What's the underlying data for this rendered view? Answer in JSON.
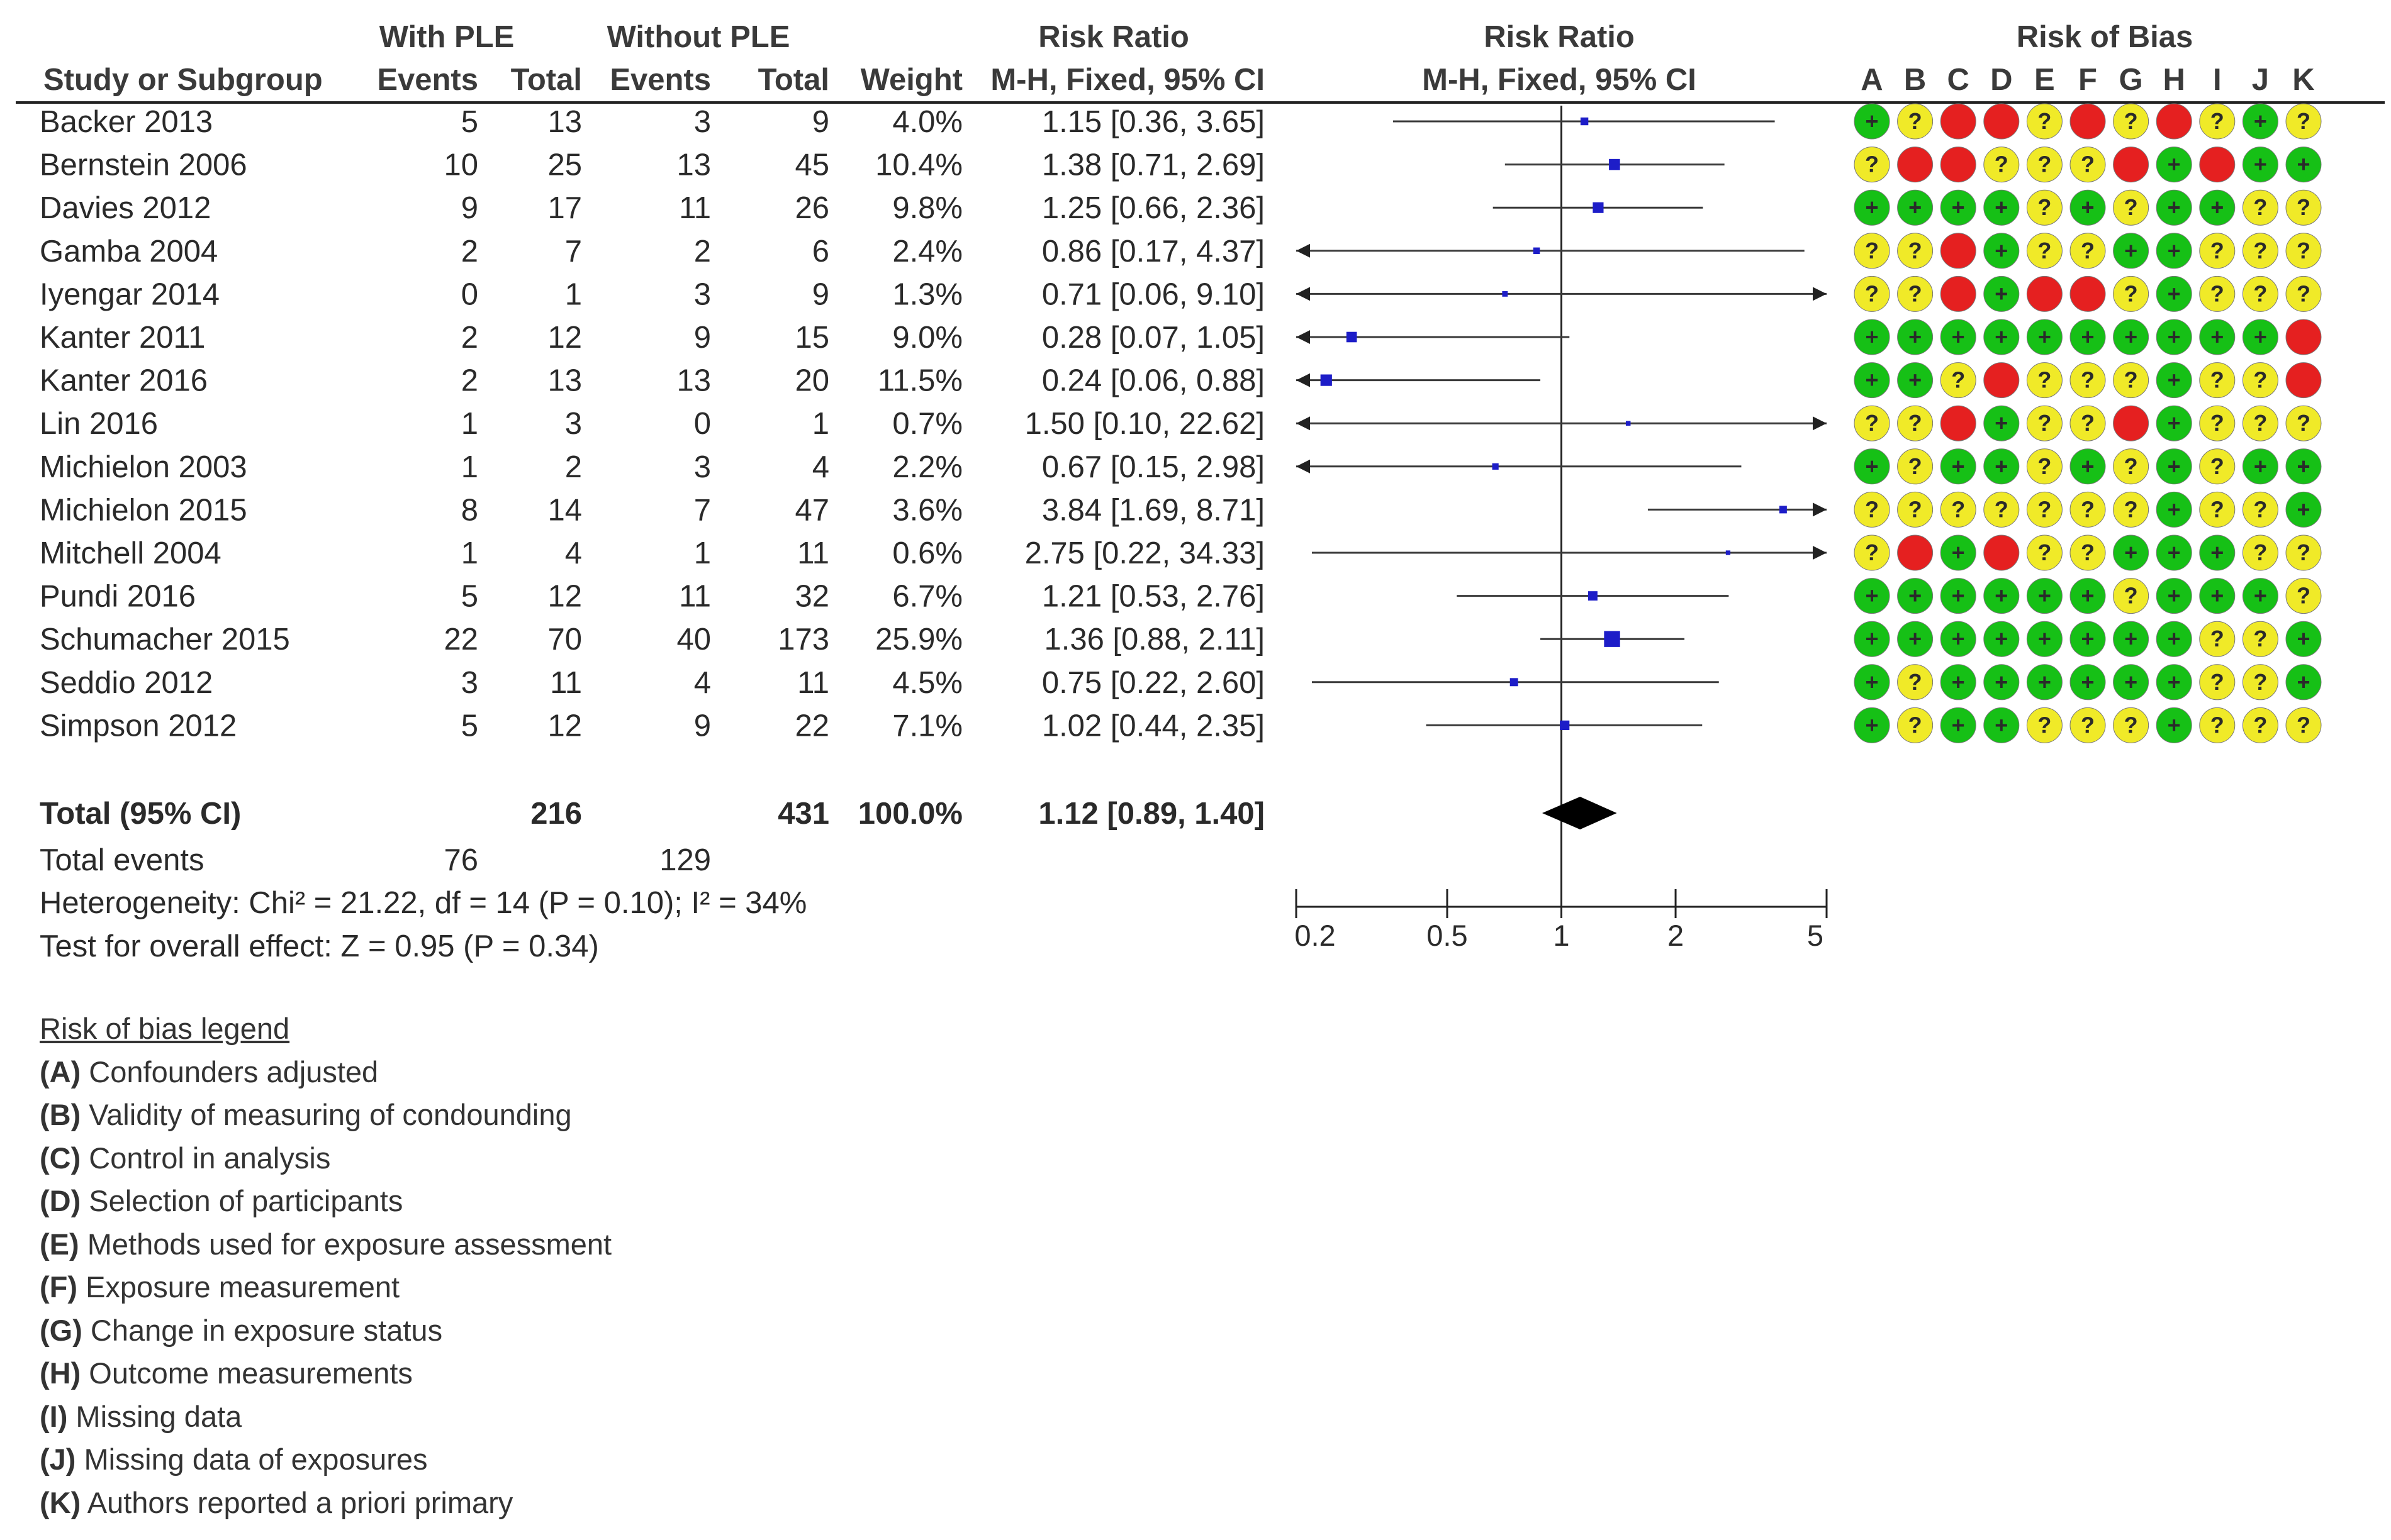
{
  "chart_data": {
    "type": "forest",
    "headers": {
      "study": "Study or Subgroup",
      "with_group": "With PLE",
      "without_group": "Without PLE",
      "events": "Events",
      "total": "Total",
      "weight": "Weight",
      "rr_title": "Risk Ratio",
      "rr_method": "M-H, Fixed, 95% CI",
      "plot_title": "Risk Ratio",
      "plot_method": "M-H, Fixed, 95% CI",
      "rob_title": "Risk of Bias",
      "rob_letters": [
        "A",
        "B",
        "C",
        "D",
        "E",
        "F",
        "G",
        "H",
        "I",
        "J",
        "K"
      ]
    },
    "studies": [
      {
        "name": "Backer 2013",
        "e1": "5",
        "n1": "13",
        "e2": "3",
        "n2": "9",
        "weight": "4.0%",
        "ci_text": "1.15 [0.36, 3.65]",
        "rr": 1.15,
        "lo": 0.36,
        "hi": 3.65,
        "w": 4.0,
        "rob": [
          "+",
          "?",
          "-",
          "-",
          "?",
          "-",
          "?",
          "-",
          "?",
          "+",
          "?"
        ]
      },
      {
        "name": "Bernstein 2006",
        "e1": "10",
        "n1": "25",
        "e2": "13",
        "n2": "45",
        "weight": "10.4%",
        "ci_text": "1.38 [0.71, 2.69]",
        "rr": 1.38,
        "lo": 0.71,
        "hi": 2.69,
        "w": 10.4,
        "rob": [
          "?",
          "-",
          "-",
          "?",
          "?",
          "?",
          "-",
          "+",
          "-",
          "+",
          "+"
        ]
      },
      {
        "name": "Davies 2012",
        "e1": "9",
        "n1": "17",
        "e2": "11",
        "n2": "26",
        "weight": "9.8%",
        "ci_text": "1.25 [0.66, 2.36]",
        "rr": 1.25,
        "lo": 0.66,
        "hi": 2.36,
        "w": 9.8,
        "rob": [
          "+",
          "+",
          "+",
          "+",
          "?",
          "+",
          "?",
          "+",
          "+",
          "?",
          "?"
        ]
      },
      {
        "name": "Gamba 2004",
        "e1": "2",
        "n1": "7",
        "e2": "2",
        "n2": "6",
        "weight": "2.4%",
        "ci_text": "0.86 [0.17, 4.37]",
        "rr": 0.86,
        "lo": 0.17,
        "hi": 4.37,
        "w": 2.4,
        "rob": [
          "?",
          "?",
          "-",
          "+",
          "?",
          "?",
          "+",
          "+",
          "?",
          "?",
          "?"
        ]
      },
      {
        "name": "Iyengar 2014",
        "e1": "0",
        "n1": "1",
        "e2": "3",
        "n2": "9",
        "weight": "1.3%",
        "ci_text": "0.71 [0.06, 9.10]",
        "rr": 0.71,
        "lo": 0.06,
        "hi": 9.1,
        "w": 1.3,
        "rob": [
          "?",
          "?",
          "-",
          "+",
          "-",
          "-",
          "?",
          "+",
          "?",
          "?",
          "?"
        ]
      },
      {
        "name": "Kanter 2011",
        "e1": "2",
        "n1": "12",
        "e2": "9",
        "n2": "15",
        "weight": "9.0%",
        "ci_text": "0.28 [0.07, 1.05]",
        "rr": 0.28,
        "lo": 0.07,
        "hi": 1.05,
        "w": 9.0,
        "rob": [
          "+",
          "+",
          "+",
          "+",
          "+",
          "+",
          "+",
          "+",
          "+",
          "+",
          "-"
        ]
      },
      {
        "name": "Kanter 2016",
        "e1": "2",
        "n1": "13",
        "e2": "13",
        "n2": "20",
        "weight": "11.5%",
        "ci_text": "0.24 [0.06, 0.88]",
        "rr": 0.24,
        "lo": 0.06,
        "hi": 0.88,
        "w": 11.5,
        "rob": [
          "+",
          "+",
          "?",
          "-",
          "?",
          "?",
          "?",
          "+",
          "?",
          "?",
          "-"
        ]
      },
      {
        "name": "Lin 2016",
        "e1": "1",
        "n1": "3",
        "e2": "0",
        "n2": "1",
        "weight": "0.7%",
        "ci_text": "1.50 [0.10, 22.62]",
        "rr": 1.5,
        "lo": 0.1,
        "hi": 22.62,
        "w": 0.7,
        "rob": [
          "?",
          "?",
          "-",
          "+",
          "?",
          "?",
          "-",
          "+",
          "?",
          "?",
          "?"
        ]
      },
      {
        "name": "Michielon 2003",
        "e1": "1",
        "n1": "2",
        "e2": "3",
        "n2": "4",
        "weight": "2.2%",
        "ci_text": "0.67 [0.15, 2.98]",
        "rr": 0.67,
        "lo": 0.15,
        "hi": 2.98,
        "w": 2.2,
        "rob": [
          "+",
          "?",
          "+",
          "+",
          "?",
          "+",
          "?",
          "+",
          "?",
          "+",
          "+"
        ]
      },
      {
        "name": "Michielon 2015",
        "e1": "8",
        "n1": "14",
        "e2": "7",
        "n2": "47",
        "weight": "3.6%",
        "ci_text": "3.84 [1.69, 8.71]",
        "rr": 3.84,
        "lo": 1.69,
        "hi": 8.71,
        "w": 3.6,
        "rob": [
          "?",
          "?",
          "?",
          "?",
          "?",
          "?",
          "?",
          "+",
          "?",
          "?",
          "+"
        ]
      },
      {
        "name": "Mitchell 2004",
        "e1": "1",
        "n1": "4",
        "e2": "1",
        "n2": "11",
        "weight": "0.6%",
        "ci_text": "2.75 [0.22, 34.33]",
        "rr": 2.75,
        "lo": 0.22,
        "hi": 34.33,
        "w": 0.6,
        "rob": [
          "?",
          "-",
          "+",
          "-",
          "?",
          "?",
          "+",
          "+",
          "+",
          "?",
          "?"
        ]
      },
      {
        "name": "Pundi 2016",
        "e1": "5",
        "n1": "12",
        "e2": "11",
        "n2": "32",
        "weight": "6.7%",
        "ci_text": "1.21 [0.53, 2.76]",
        "rr": 1.21,
        "lo": 0.53,
        "hi": 2.76,
        "w": 6.7,
        "rob": [
          "+",
          "+",
          "+",
          "+",
          "+",
          "+",
          "?",
          "+",
          "+",
          "+",
          "?"
        ]
      },
      {
        "name": "Schumacher 2015",
        "e1": "22",
        "n1": "70",
        "e2": "40",
        "n2": "173",
        "weight": "25.9%",
        "ci_text": "1.36 [0.88, 2.11]",
        "rr": 1.36,
        "lo": 0.88,
        "hi": 2.11,
        "w": 25.9,
        "rob": [
          "+",
          "+",
          "+",
          "+",
          "+",
          "+",
          "+",
          "+",
          "?",
          "?",
          "+"
        ]
      },
      {
        "name": "Seddio 2012",
        "e1": "3",
        "n1": "11",
        "e2": "4",
        "n2": "11",
        "weight": "4.5%",
        "ci_text": "0.75 [0.22, 2.60]",
        "rr": 0.75,
        "lo": 0.22,
        "hi": 2.6,
        "w": 4.5,
        "rob": [
          "+",
          "?",
          "+",
          "+",
          "+",
          "+",
          "+",
          "+",
          "?",
          "?",
          "+"
        ]
      },
      {
        "name": "Simpson 2012",
        "e1": "5",
        "n1": "12",
        "e2": "9",
        "n2": "22",
        "weight": "7.1%",
        "ci_text": "1.02 [0.44, 2.35]",
        "rr": 1.02,
        "lo": 0.44,
        "hi": 2.35,
        "w": 7.1,
        "rob": [
          "+",
          "?",
          "+",
          "+",
          "?",
          "?",
          "?",
          "+",
          "?",
          "?",
          "?"
        ]
      }
    ],
    "total": {
      "label": "Total (95% CI)",
      "n1": "216",
      "n2": "431",
      "weight": "100.0%",
      "ci_text": "1.12 [0.89, 1.40]",
      "rr": 1.12,
      "lo": 0.89,
      "hi": 1.4
    },
    "total_events": {
      "label": "Total events",
      "e1": "76",
      "e2": "129"
    },
    "heterogeneity": "Heterogeneity: Chi² = 21.22, df = 14 (P = 0.10); I² = 34%",
    "overall_effect": "Test for overall effect: Z = 0.95 (P = 0.34)",
    "axis": {
      "scale": "log",
      "range": [
        0.2,
        5
      ],
      "ticks": [
        0.2,
        0.5,
        1,
        2,
        5
      ],
      "tick_labels": [
        "0.2",
        "0.5",
        "1",
        "2",
        "5"
      ]
    },
    "colors": {
      "low_risk": "#16c016",
      "unclear_risk": "#f0ea28",
      "high_risk": "#e52020",
      "marker": "#1d1dc8"
    }
  },
  "legend": {
    "title": "Risk of bias legend",
    "items": [
      {
        "letter": "(A)",
        "text": " Confounders adjusted"
      },
      {
        "letter": "(B)",
        "text": " Validity of measuring of condounding"
      },
      {
        "letter": "(C)",
        "text": " Control in analysis"
      },
      {
        "letter": "(D)",
        "text": " Selection of participants"
      },
      {
        "letter": "(E)",
        "text": " Methods used for exposure assessment"
      },
      {
        "letter": "(F)",
        "text": " Exposure measurement"
      },
      {
        "letter": "(G)",
        "text": " Change in exposure status"
      },
      {
        "letter": "(H)",
        "text": " Outcome measurements"
      },
      {
        "letter": "(I)",
        "text": " Missing data"
      },
      {
        "letter": "(J)",
        "text": " Missing data of exposures"
      },
      {
        "letter": "(K)",
        "text": " Authors reported a priori primary"
      }
    ]
  }
}
